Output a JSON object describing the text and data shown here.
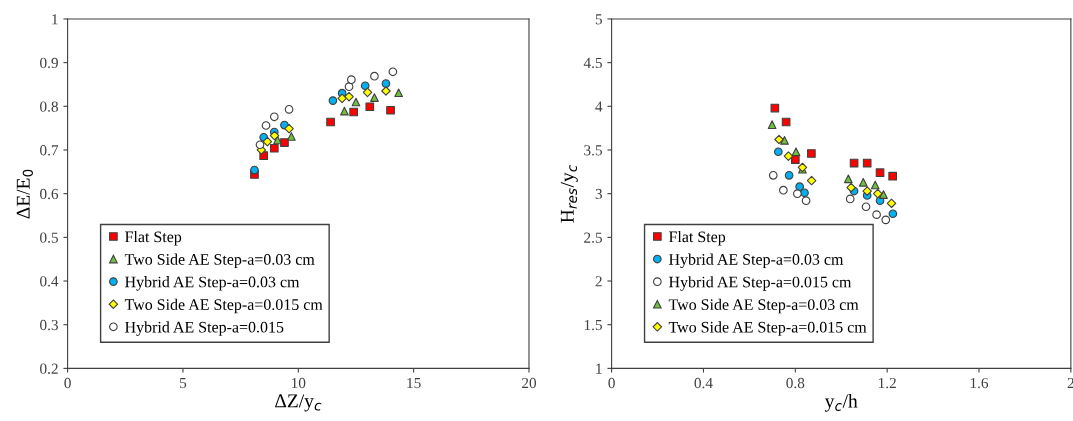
{
  "chart_data": [
    {
      "type": "scatter",
      "xlabel": "ΔZ/y$_{c}$",
      "ylabel": "ΔE/E$_{0}$",
      "xlim": [
        0,
        20
      ],
      "xticks": [
        0,
        5,
        10,
        15,
        20
      ],
      "ylim": [
        0.2,
        1
      ],
      "yticks": [
        0.2,
        0.3,
        0.4,
        0.5,
        0.6,
        0.7,
        0.8,
        0.9,
        1
      ],
      "grid": false,
      "legend": "bottom left",
      "series": [
        {
          "name": "Flat Step",
          "color": "#ff0000",
          "marker": "square",
          "x": [
            8.1,
            8.5,
            8.96,
            9.4,
            11.4,
            12.4,
            13.1,
            14.0
          ],
          "values": [
            0.644,
            0.687,
            0.704,
            0.717,
            0.764,
            0.787,
            0.799,
            0.791
          ]
        },
        {
          "name": "Two Side AE Step-a=0.03 cm",
          "color": "#70c040",
          "marker": "triangle",
          "x": [
            9.1,
            9.7,
            12.0,
            12.5,
            13.3,
            14.35
          ],
          "values": [
            0.723,
            0.731,
            0.789,
            0.81,
            0.82,
            0.831
          ]
        },
        {
          "name": "Hybrid AE Step-a=0.03 cm",
          "color": "#00b0f0",
          "marker": "circle",
          "x": [
            8.1,
            8.5,
            8.96,
            9.4,
            11.5,
            11.9,
            12.9,
            13.8
          ],
          "values": [
            0.654,
            0.729,
            0.741,
            0.757,
            0.813,
            0.83,
            0.847,
            0.852
          ]
        },
        {
          "name": "Two Side AE Step-a=0.015 cm",
          "color": "#ffff00",
          "marker": "diamond",
          "x": [
            8.4,
            8.66,
            8.97,
            9.6,
            11.9,
            12.2,
            13.0,
            13.8
          ],
          "values": [
            0.7,
            0.719,
            0.733,
            0.749,
            0.818,
            0.822,
            0.832,
            0.835
          ]
        },
        {
          "name": "Hybrid AE Step-a=0.015",
          "color": "#ffffff",
          "marker": "circle",
          "x": [
            8.34,
            8.6,
            8.96,
            9.6,
            12.2,
            12.3,
            13.3,
            14.1
          ],
          "values": [
            0.712,
            0.756,
            0.776,
            0.793,
            0.845,
            0.861,
            0.869,
            0.879
          ]
        }
      ]
    },
    {
      "type": "scatter",
      "xlabel": "y$_{c}$/h",
      "ylabel": "H$_{res}$/y$_{c}$",
      "xlim": [
        0,
        2
      ],
      "xticks": [
        0,
        0.4,
        0.8,
        1.2,
        1.6,
        2
      ],
      "ylim": [
        1,
        5
      ],
      "yticks": [
        1,
        1.5,
        2,
        2.5,
        3,
        3.5,
        4,
        4.5,
        5
      ],
      "grid": false,
      "legend": "bottom left",
      "series": [
        {
          "name": "Flat Step",
          "color": "#ff0000",
          "marker": "square",
          "x": [
            0.711,
            0.76,
            0.8,
            0.87,
            1.056,
            1.113,
            1.169,
            1.224
          ],
          "values": [
            3.98,
            3.82,
            3.39,
            3.46,
            3.35,
            3.35,
            3.24,
            3.2
          ]
        },
        {
          "name": "Hybrid AE Step-a=0.03 cm",
          "color": "#00b0f0",
          "marker": "circle",
          "x": [
            0.726,
            0.773,
            0.819,
            0.84,
            1.056,
            1.113,
            1.169,
            1.225
          ],
          "values": [
            3.48,
            3.21,
            3.08,
            3.01,
            3.03,
            2.98,
            2.92,
            2.77
          ]
        },
        {
          "name": "Hybrid AE Step-a=0.015 cm",
          "color": "#ffffff",
          "marker": "circle",
          "x": [
            0.704,
            0.748,
            0.809,
            0.847,
            1.039,
            1.108,
            1.154,
            1.194
          ],
          "values": [
            3.21,
            3.04,
            3.0,
            2.92,
            2.94,
            2.85,
            2.76,
            2.7
          ]
        },
        {
          "name": "Two Side AE Step-a=0.03 cm",
          "color": "#70c040",
          "marker": "triangle",
          "x": [
            0.699,
            0.753,
            0.803,
            0.831,
            1.031,
            1.096,
            1.148,
            1.184
          ],
          "values": [
            3.79,
            3.61,
            3.48,
            3.28,
            3.17,
            3.13,
            3.1,
            2.99
          ]
        },
        {
          "name": "Two Side AE Step-a=0.015 cm",
          "color": "#ffff00",
          "marker": "diamond",
          "x": [
            0.729,
            0.77,
            0.831,
            0.871,
            1.043,
            1.113,
            1.159,
            1.219
          ],
          "values": [
            3.62,
            3.43,
            3.3,
            3.15,
            3.07,
            3.03,
            3.0,
            2.89
          ]
        }
      ]
    }
  ]
}
